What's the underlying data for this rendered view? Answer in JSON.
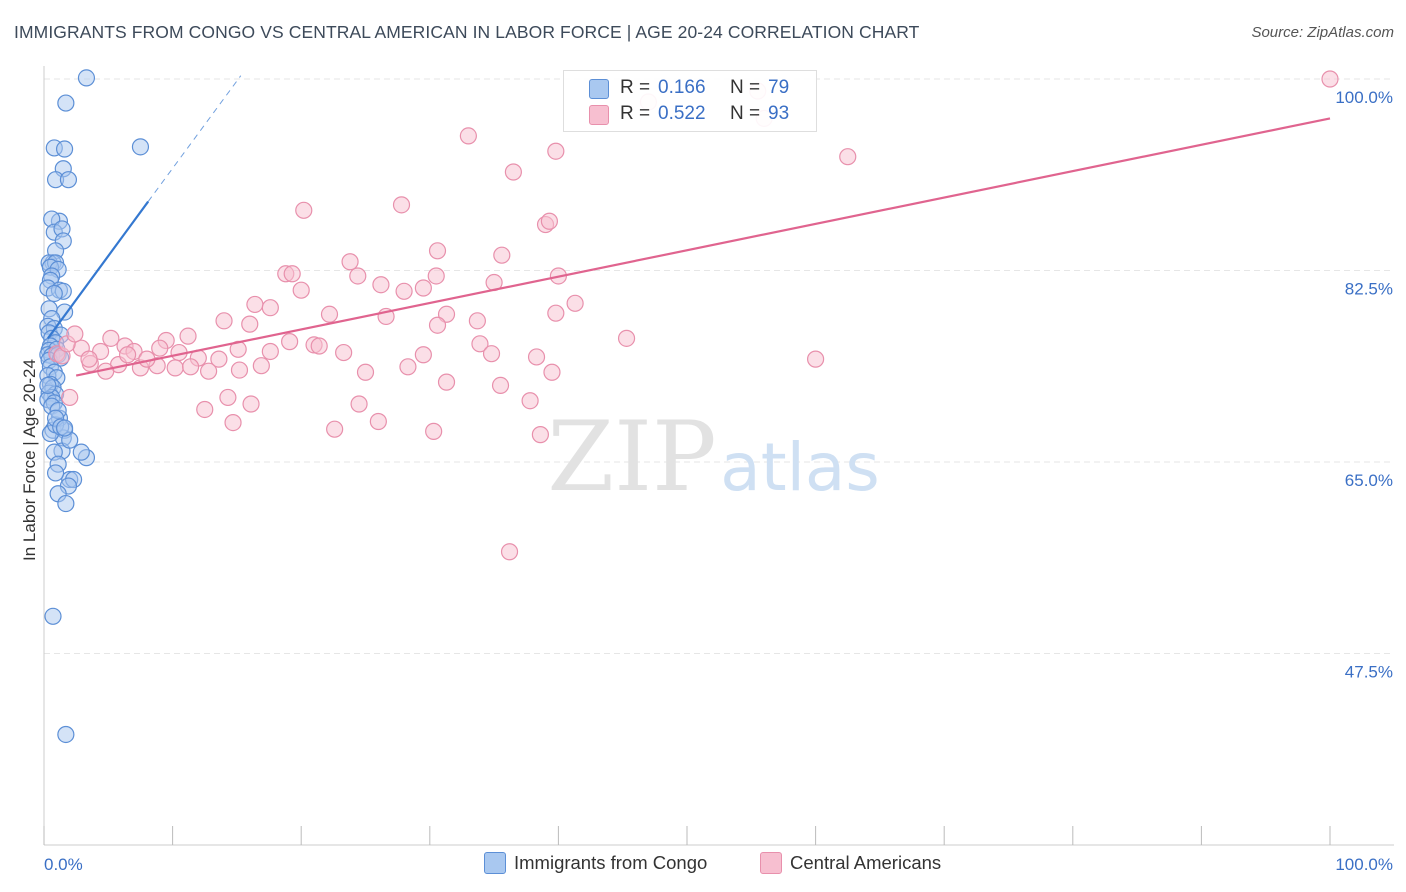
{
  "title": "IMMIGRANTS FROM CONGO VS CENTRAL AMERICAN IN LABOR FORCE | AGE 20-24 CORRELATION CHART",
  "source": "Source: ZipAtlas.com",
  "watermark": {
    "zip": "ZIP",
    "atlas": "atlas"
  },
  "legend": {
    "rows": [
      {
        "r_label": "R =",
        "r_value": "0.166",
        "n_label": "N =",
        "n_value": "79"
      },
      {
        "r_label": "R =",
        "r_value": "0.522",
        "n_label": "N =",
        "n_value": "93"
      }
    ]
  },
  "colors": {
    "congo_fill": "#a9c8f0",
    "congo_stroke": "#5c8fd6",
    "congo_line": "#3478d0",
    "central_fill": "#f7bfd0",
    "central_stroke": "#e890ac",
    "central_line": "#e0648f",
    "tick_label": "#3a6fc5",
    "grid": "#e6e6e6"
  },
  "chart_data": {
    "type": "scatter",
    "title": "IMMIGRANTS FROM CONGO VS CENTRAL AMERICAN IN LABOR FORCE | AGE 20-24 CORRELATION CHART",
    "xlabel": "",
    "ylabel": "In Labor Force | Age 20-24",
    "xlim": [
      0,
      100
    ],
    "ylim": [
      31,
      102
    ],
    "x_tick_labels": [
      "0.0%",
      "100.0%"
    ],
    "y_ticks": [
      47.5,
      65.0,
      82.5,
      100.0
    ],
    "y_tick_labels": [
      "47.5%",
      "65.0%",
      "82.5%",
      "100.0%"
    ],
    "grid": true,
    "legend_position": "top-center",
    "series": [
      {
        "name": "Immigrants from Congo",
        "R": 0.166,
        "N": 79,
        "trend": {
          "x1": 0.3,
          "y1": 76.3,
          "x2": 8.1,
          "y2": 88.8,
          "dashed_to_x": 15.3,
          "dashed_to_y": 100.3
        },
        "points": [
          [
            3.3,
            100.1
          ],
          [
            1.7,
            97.8
          ],
          [
            0.8,
            93.7
          ],
          [
            1.6,
            93.6
          ],
          [
            7.5,
            93.8
          ],
          [
            1.5,
            91.8
          ],
          [
            0.9,
            90.8
          ],
          [
            1.9,
            90.8
          ],
          [
            1.2,
            87.0
          ],
          [
            0.6,
            87.2
          ],
          [
            0.8,
            86.0
          ],
          [
            1.4,
            86.3
          ],
          [
            1.5,
            85.2
          ],
          [
            0.9,
            84.3
          ],
          [
            0.7,
            83.2
          ],
          [
            0.4,
            83.2
          ],
          [
            0.9,
            83.2
          ],
          [
            0.5,
            82.8
          ],
          [
            1.1,
            82.6
          ],
          [
            0.6,
            82.0
          ],
          [
            0.5,
            81.6
          ],
          [
            0.3,
            80.9
          ],
          [
            1.2,
            80.7
          ],
          [
            1.5,
            80.6
          ],
          [
            0.8,
            80.4
          ],
          [
            0.4,
            79.0
          ],
          [
            1.6,
            78.7
          ],
          [
            0.6,
            78.1
          ],
          [
            0.3,
            77.4
          ],
          [
            0.8,
            77.2
          ],
          [
            0.4,
            76.8
          ],
          [
            1.3,
            76.6
          ],
          [
            0.6,
            76.3
          ],
          [
            0.9,
            75.9
          ],
          [
            0.5,
            75.6
          ],
          [
            0.4,
            75.2
          ],
          [
            1.0,
            75.3
          ],
          [
            0.3,
            74.8
          ],
          [
            0.6,
            74.7
          ],
          [
            1.1,
            74.8
          ],
          [
            0.4,
            74.3
          ],
          [
            1.3,
            74.5
          ],
          [
            0.5,
            73.7
          ],
          [
            0.8,
            73.2
          ],
          [
            0.3,
            72.9
          ],
          [
            1.0,
            72.7
          ],
          [
            0.5,
            72.1
          ],
          [
            0.7,
            71.8
          ],
          [
            0.4,
            71.3
          ],
          [
            0.9,
            71.2
          ],
          [
            0.6,
            70.9
          ],
          [
            0.3,
            70.7
          ],
          [
            0.8,
            70.4
          ],
          [
            0.3,
            72.0
          ],
          [
            0.6,
            70.1
          ],
          [
            0.7,
            67.9
          ],
          [
            1.6,
            67.9
          ],
          [
            1.5,
            67.2
          ],
          [
            1.4,
            66.0
          ],
          [
            3.3,
            65.4
          ],
          [
            0.8,
            65.9
          ],
          [
            0.5,
            67.6
          ],
          [
            1.2,
            69.0
          ],
          [
            0.9,
            68.4
          ],
          [
            1.1,
            69.7
          ],
          [
            2.0,
            67.0
          ],
          [
            2.9,
            65.9
          ],
          [
            0.9,
            69.0
          ],
          [
            1.3,
            68.2
          ],
          [
            1.6,
            68.1
          ],
          [
            1.1,
            64.8
          ],
          [
            2.0,
            63.4
          ],
          [
            2.3,
            63.4
          ],
          [
            0.9,
            64.0
          ],
          [
            1.9,
            62.8
          ],
          [
            1.1,
            62.1
          ],
          [
            1.7,
            61.2
          ],
          [
            0.7,
            50.9
          ],
          [
            1.7,
            40.1
          ]
        ]
      },
      {
        "name": "Central Americans",
        "R": 0.522,
        "N": 93,
        "trend": {
          "x1": 2.5,
          "y1": 72.9,
          "x2": 100,
          "y2": 96.4
        },
        "points": [
          [
            100.0,
            100.0
          ],
          [
            55.5,
            98.9
          ],
          [
            56.0,
            96.4
          ],
          [
            47.0,
            97.9
          ],
          [
            33.0,
            94.8
          ],
          [
            39.8,
            93.4
          ],
          [
            62.5,
            92.9
          ],
          [
            36.5,
            91.5
          ],
          [
            20.2,
            88.0
          ],
          [
            27.8,
            88.5
          ],
          [
            39.0,
            86.7
          ],
          [
            39.3,
            87.0
          ],
          [
            35.6,
            83.9
          ],
          [
            23.8,
            83.3
          ],
          [
            30.6,
            84.3
          ],
          [
            18.8,
            82.2
          ],
          [
            19.3,
            82.2
          ],
          [
            24.4,
            82.0
          ],
          [
            30.5,
            82.0
          ],
          [
            40.0,
            82.0
          ],
          [
            35.0,
            81.4
          ],
          [
            26.2,
            81.2
          ],
          [
            29.5,
            80.9
          ],
          [
            20.0,
            80.7
          ],
          [
            28.0,
            80.6
          ],
          [
            16.4,
            79.4
          ],
          [
            17.6,
            79.1
          ],
          [
            41.3,
            79.5
          ],
          [
            22.2,
            78.5
          ],
          [
            26.6,
            78.3
          ],
          [
            31.3,
            78.5
          ],
          [
            33.7,
            77.9
          ],
          [
            39.8,
            78.6
          ],
          [
            14.0,
            77.9
          ],
          [
            16.0,
            77.6
          ],
          [
            30.6,
            77.5
          ],
          [
            5.2,
            76.3
          ],
          [
            9.5,
            76.1
          ],
          [
            21.0,
            75.7
          ],
          [
            45.3,
            76.3
          ],
          [
            6.3,
            75.6
          ],
          [
            15.1,
            75.3
          ],
          [
            21.4,
            75.6
          ],
          [
            23.3,
            75.0
          ],
          [
            33.9,
            75.8
          ],
          [
            2.9,
            75.4
          ],
          [
            4.4,
            75.1
          ],
          [
            7.0,
            75.1
          ],
          [
            9.0,
            75.4
          ],
          [
            10.5,
            75.0
          ],
          [
            12.0,
            74.5
          ],
          [
            13.6,
            74.4
          ],
          [
            29.5,
            74.8
          ],
          [
            34.8,
            74.9
          ],
          [
            38.3,
            74.6
          ],
          [
            60.0,
            74.4
          ],
          [
            1.0,
            74.9
          ],
          [
            1.4,
            74.7
          ],
          [
            3.6,
            74.0
          ],
          [
            5.8,
            73.9
          ],
          [
            7.5,
            73.6
          ],
          [
            8.8,
            73.8
          ],
          [
            10.2,
            73.6
          ],
          [
            11.4,
            73.7
          ],
          [
            12.8,
            73.3
          ],
          [
            15.2,
            73.4
          ],
          [
            16.9,
            73.8
          ],
          [
            25.0,
            73.2
          ],
          [
            28.3,
            73.7
          ],
          [
            31.3,
            72.3
          ],
          [
            39.5,
            73.2
          ],
          [
            35.5,
            72.0
          ],
          [
            14.3,
            70.9
          ],
          [
            16.1,
            70.3
          ],
          [
            24.5,
            70.3
          ],
          [
            37.8,
            70.6
          ],
          [
            12.5,
            69.8
          ],
          [
            14.7,
            68.6
          ],
          [
            22.6,
            68.0
          ],
          [
            26.0,
            68.7
          ],
          [
            30.3,
            67.8
          ],
          [
            38.6,
            67.5
          ],
          [
            2.0,
            70.9
          ],
          [
            3.5,
            74.4
          ],
          [
            4.8,
            73.3
          ],
          [
            6.5,
            74.8
          ],
          [
            8.0,
            74.4
          ],
          [
            1.8,
            75.8
          ],
          [
            2.4,
            76.7
          ],
          [
            11.2,
            76.5
          ],
          [
            17.6,
            75.1
          ],
          [
            19.1,
            76.0
          ],
          [
            36.2,
            56.8
          ]
        ]
      }
    ]
  },
  "bottom_legend": {
    "series1": "Immigrants from Congo",
    "series2": "Central Americans"
  }
}
